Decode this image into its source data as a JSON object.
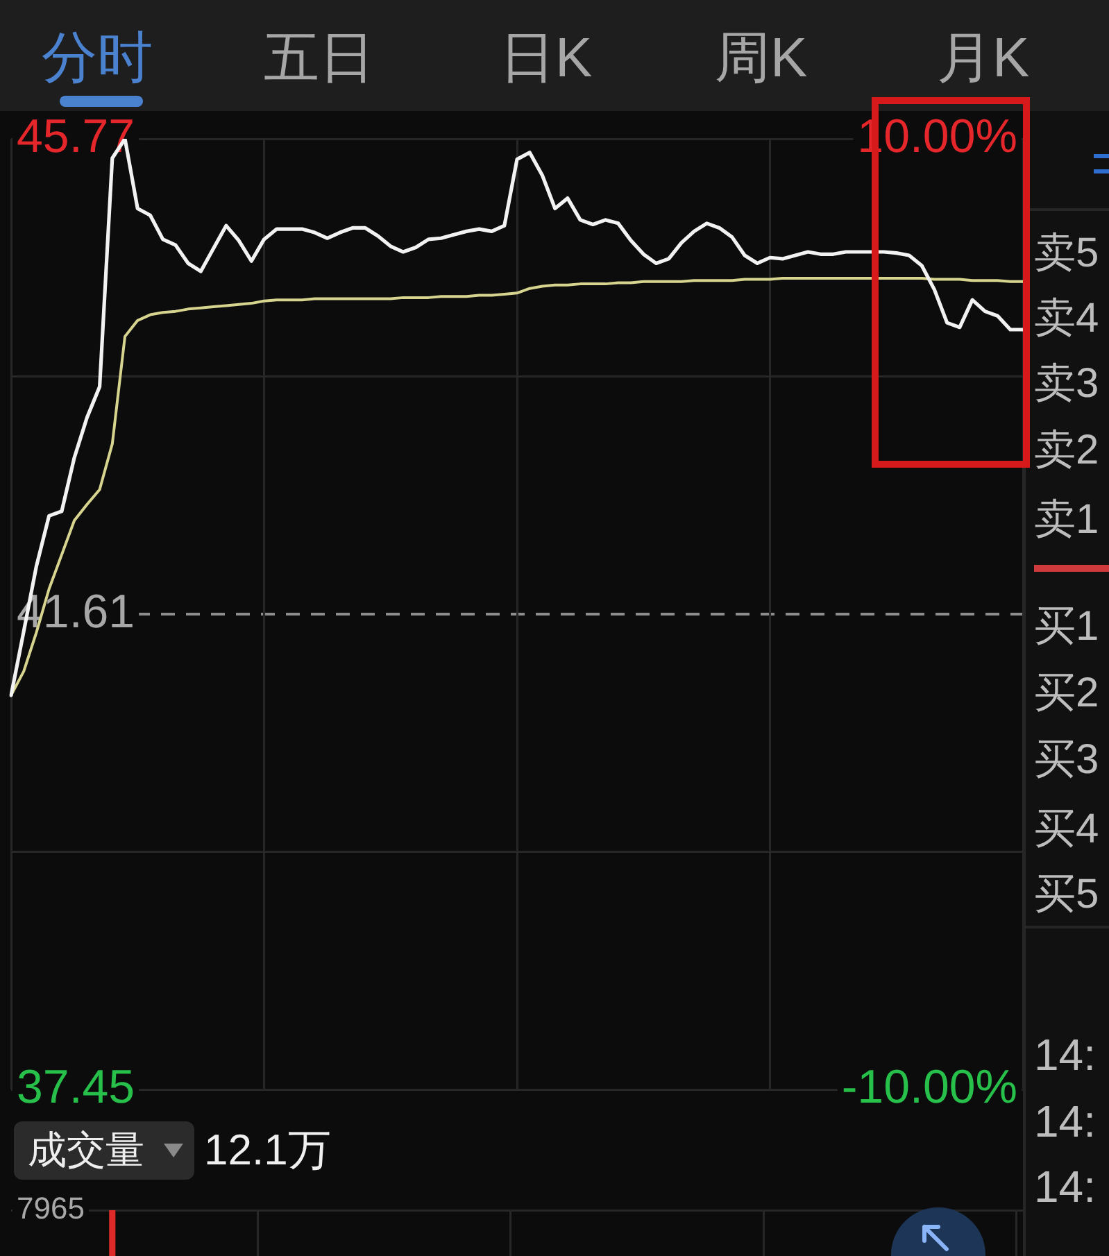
{
  "chart_data": [
    {
      "type": "line",
      "annotations": [
        "分时",
        "五日",
        "日K",
        "周K",
        "月K",
        "卖5",
        "卖4",
        "卖3",
        "卖2",
        "卖1",
        "买1",
        "买2",
        "买3",
        "买4",
        "买5",
        "14:",
        "14:",
        "14:"
      ],
      "categories": [
        null,
        null,
        null,
        null,
        null,
        null,
        null,
        null,
        null,
        null,
        null,
        null,
        null,
        null,
        null,
        null,
        null,
        null,
        null,
        null,
        null,
        null,
        null,
        null,
        null,
        null,
        null,
        null,
        null,
        null,
        null,
        null,
        null,
        null,
        null,
        null,
        null,
        null,
        null,
        null,
        null,
        null,
        null,
        null,
        null,
        null,
        null,
        null,
        null,
        null,
        null,
        null,
        null,
        null,
        null,
        null,
        null,
        null,
        null,
        null,
        null,
        null,
        null,
        null,
        null,
        null,
        null,
        null,
        null,
        null,
        null,
        null,
        null,
        null,
        null,
        null,
        null,
        null,
        null,
        null,
        null
      ],
      "series": [
        {
          "color": "#f2f2f2",
          "values": [
            40.9,
            41.46,
            42.03,
            42.47,
            42.51,
            42.98,
            43.33,
            43.6,
            45.6,
            45.77,
            45.16,
            45.1,
            44.89,
            44.84,
            44.68,
            44.61,
            44.81,
            45.01,
            44.88,
            44.7,
            44.89,
            44.98,
            44.98,
            44.98,
            44.95,
            44.9,
            44.95,
            44.99,
            44.99,
            44.92,
            44.83,
            44.78,
            44.82,
            44.89,
            44.9,
            44.93,
            44.96,
            44.98,
            44.96,
            45.01,
            45.59,
            45.65,
            45.45,
            45.16,
            45.25,
            45.06,
            45.02,
            45.06,
            45.03,
            44.88,
            44.76,
            44.68,
            44.72,
            44.86,
            44.96,
            45.03,
            44.99,
            44.91,
            44.75,
            44.68,
            44.73,
            44.72,
            44.75,
            44.78,
            44.76,
            44.76,
            44.78,
            44.78,
            44.78,
            44.78,
            44.77,
            44.75,
            44.66,
            44.45,
            44.16,
            44.12,
            44.36,
            44.26,
            44.22,
            44.1,
            44.1
          ]
        },
        {
          "color": "#d6d48e",
          "values": [
            40.9,
            41.11,
            41.45,
            41.83,
            42.13,
            42.43,
            42.57,
            42.7,
            43.1,
            44.04,
            44.18,
            44.23,
            44.25,
            44.26,
            44.28,
            44.29,
            44.3,
            44.31,
            44.32,
            44.33,
            44.35,
            44.36,
            44.36,
            44.36,
            44.37,
            44.37,
            44.37,
            44.37,
            44.37,
            44.37,
            44.37,
            44.38,
            44.38,
            44.38,
            44.39,
            44.39,
            44.39,
            44.4,
            44.4,
            44.41,
            44.42,
            44.46,
            44.48,
            44.49,
            44.49,
            44.5,
            44.5,
            44.5,
            44.51,
            44.51,
            44.52,
            44.52,
            44.52,
            44.52,
            44.53,
            44.53,
            44.53,
            44.53,
            44.54,
            44.54,
            44.54,
            44.55,
            44.55,
            44.55,
            44.55,
            44.55,
            44.55,
            44.55,
            44.55,
            44.55,
            44.55,
            44.55,
            44.55,
            44.54,
            44.54,
            44.54,
            44.53,
            44.53,
            44.53,
            44.52,
            44.52
          ]
        }
      ],
      "ylim": [
        37.45,
        45.77
      ],
      "yticks": [
        45.77,
        {
          "value": 43.69,
          "label": null
        },
        41.61,
        {
          "value": 39.53,
          "label": null
        },
        37.45
      ],
      "y2lim": [
        -10,
        10
      ],
      "y2ticks": [
        {
          "value": 10,
          "label": "10.00%"
        },
        {
          "value": -10,
          "label": "-10.00%"
        }
      ],
      "ref_lines": [
        {
          "axis": "y",
          "value": 41.61,
          "line_style": "dashed",
          "color": "#8c8c8c"
        }
      ],
      "grid": true
    },
    {
      "type": "bar",
      "title": "成交量",
      "annotations": [
        "12.1万"
      ],
      "categories": [
        null,
        null,
        null,
        null,
        null,
        null,
        null,
        null,
        null,
        null,
        null,
        null,
        null,
        null,
        null,
        null,
        null,
        null,
        null,
        null,
        null,
        null,
        null,
        null,
        null,
        null,
        null,
        null,
        null,
        null,
        null,
        null,
        null,
        null,
        null,
        null,
        null,
        null,
        null,
        null,
        null,
        null,
        null,
        null,
        null,
        null,
        null,
        null,
        null,
        null,
        null,
        null,
        null,
        null,
        null,
        null,
        null,
        null,
        null,
        null,
        null,
        null,
        null,
        null,
        null,
        null,
        null,
        null,
        null,
        null,
        null,
        null,
        null,
        null,
        null,
        null,
        null,
        null,
        null,
        null,
        null
      ],
      "series": [
        {
          "color": "#e02a2a",
          "values": [
            null,
            null,
            null,
            null,
            null,
            null,
            null,
            null,
            7965,
            null,
            null,
            null,
            null,
            null,
            null,
            null,
            null,
            null,
            null,
            null,
            null,
            null,
            null,
            null,
            null,
            null,
            null,
            null,
            null,
            null,
            null,
            null,
            null,
            null,
            null,
            null,
            null,
            null,
            null,
            null,
            null,
            null,
            null,
            null,
            null,
            null,
            null,
            null,
            null,
            null,
            null,
            null,
            null,
            null,
            null,
            null,
            null,
            null,
            null,
            null,
            null,
            null,
            null,
            null,
            null,
            null,
            null,
            null,
            null,
            null,
            null,
            null,
            null,
            null,
            null,
            null,
            null,
            null,
            null,
            null,
            null
          ]
        }
      ],
      "ylim": [
        0,
        7965
      ],
      "yticks": [
        7965
      ],
      "grid": true
    }
  ]
}
